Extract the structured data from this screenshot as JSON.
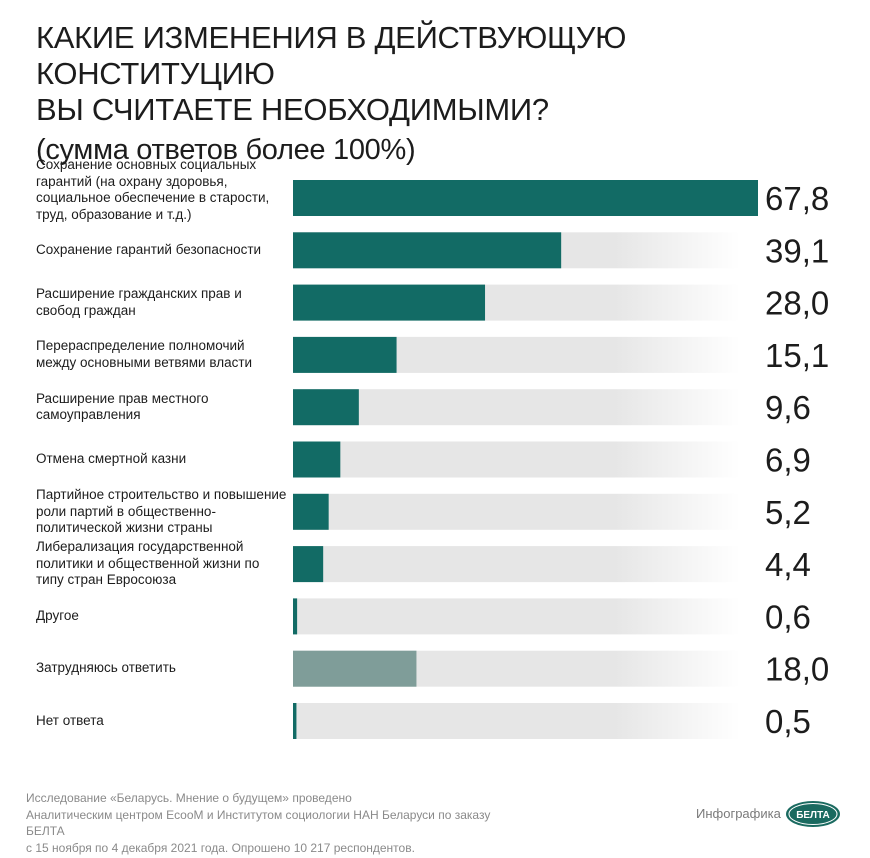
{
  "title": {
    "line1": "КАКИЕ ИЗМЕНЕНИЯ В ДЕЙСТВУЮЩУЮ КОНСТИТУЦИЮ",
    "line2": "ВЫ СЧИТАЕТЕ НЕОБХОДИМЫМИ?",
    "note": "(сумма ответов более 100%)"
  },
  "chart_data": {
    "type": "bar",
    "orientation": "horizontal",
    "title": "КАКИЕ ИЗМЕНЕНИЯ В ДЕЙСТВУЮЩУЮ КОНСТИТУЦИЮ ВЫ СЧИТАЕТЕ НЕОБХОДИМЫМИ?",
    "subtitle": "(сумма ответов более 100%)",
    "unit": "%",
    "xlim": [
      0,
      67.8
    ],
    "grid": false,
    "categories": [
      "Сохранение основных социальных гарантий (на охрану здоровья, социальное обеспечение в старости, труд, образование и т.д.)",
      "Сохранение гарантий безопасности",
      "Расширение гражданских прав и свобод граждан",
      "Перераспределение полномочий между основными ветвями власти",
      "Расширение прав местного самоуправления",
      "Отмена смертной казни",
      "Партийное строительство и повышение роли партий в общественно-политической жизни страны",
      "Либерализация государственной политики и общественной жизни по типу стран Евросоюза",
      "Другое",
      "Затрудняюсь ответить",
      "Нет ответа"
    ],
    "label_lines": [
      [
        "Сохранение основных социальных",
        "гарантий (на охрану здоровья,",
        "социальное обеспечение в старости,",
        "труд, образование и т.д.)"
      ],
      [
        "Сохранение гарантий безопасности"
      ],
      [
        "Расширение гражданских прав и",
        "свобод граждан"
      ],
      [
        "Перераспределение полномочий",
        "между основными ветвями власти"
      ],
      [
        "Расширение прав местного",
        "самоуправления"
      ],
      [
        "Отмена смертной казни"
      ],
      [
        "Партийное строительство и повышение",
        "роли партий в общественно-",
        "политической жизни страны"
      ],
      [
        "Либерализация государственной",
        "политики и общественной жизни по",
        "типу стран Евросоюза"
      ],
      [
        "Другое"
      ],
      [
        "Затрудняюсь ответить"
      ],
      [
        "Нет ответа"
      ]
    ],
    "values": [
      67.8,
      39.1,
      28.0,
      15.1,
      9.6,
      6.9,
      5.2,
      4.4,
      0.6,
      18.0,
      0.5
    ],
    "value_labels": [
      "67,8",
      "39,1",
      "28,0",
      "15,1",
      "9,6",
      "6,9",
      "5,2",
      "4,4",
      "0,6",
      "18,0",
      "0,5"
    ],
    "highlight": [
      false,
      false,
      false,
      false,
      false,
      false,
      false,
      false,
      false,
      true,
      false
    ]
  },
  "colors": {
    "bar": "#126b65",
    "bar_muted": "#7f9d99",
    "track": "#e6e6e6"
  },
  "footer": {
    "line1": "Исследование «Беларусь. Мнение о будущем» проведено",
    "line2": "Аналитическим центром EcooM и Институтом социологии НАН Беларуси по заказу БЕЛТА",
    "line3": "с 15 ноября по 4 декабря 2021 года. Опрошено 10 217 респондентов.",
    "credit": "Инфографика",
    "logo_text": "БЕЛТА"
  }
}
